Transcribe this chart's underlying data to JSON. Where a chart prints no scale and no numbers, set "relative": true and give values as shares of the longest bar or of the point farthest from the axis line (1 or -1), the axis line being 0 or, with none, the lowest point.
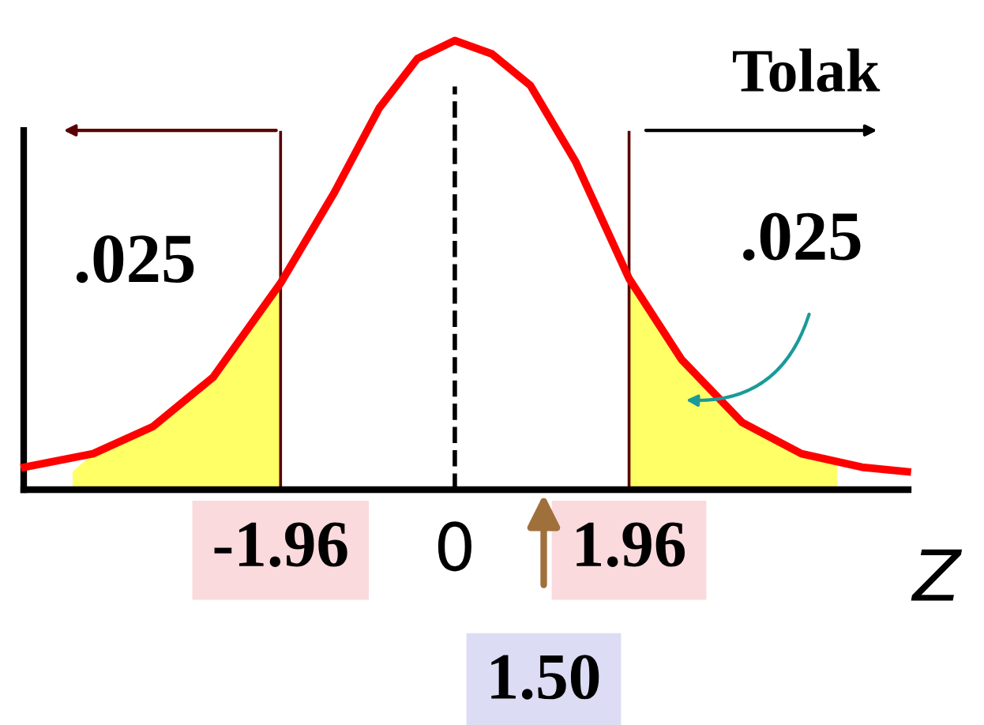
{
  "chart_data": {
    "type": "line",
    "relative": true,
    "xlabel": "Z",
    "tick_labels": "x",
    "grid": false,
    "marker": "none",
    "line_style": "solid",
    "x": [
      -4.84,
      -4.07,
      -3.4,
      -2.72,
      -1.96,
      -1.36,
      -0.85,
      -0.42,
      0,
      0.42,
      0.85,
      1.36,
      1.96,
      2.55,
      3.23,
      3.9,
      4.58,
      5.09
    ],
    "series": [
      {
        "color": "#ff0000",
        "values": [
          0.05,
          0.08,
          0.14,
          0.25,
          0.46,
          0.66,
          0.85,
          0.96,
          1,
          0.97,
          0.9,
          0.73,
          0.47,
          0.29,
          0.15,
          0.08,
          0.05,
          0.04
        ]
      },
      {
        "type": "area",
        "color": "#ffff66",
        "x": [
          -4.3,
          -4.07,
          -3.4,
          -2.72,
          -1.96
        ],
        "values": [
          0.04,
          0.08,
          0.14,
          0.25,
          0.46
        ]
      },
      {
        "type": "area",
        "color": "#ffff66",
        "x": [
          1.96,
          2.55,
          3.23,
          3.9,
          4.3
        ],
        "values": [
          0.47,
          0.29,
          0.15,
          0.08,
          0.06
        ]
      }
    ],
    "xlim": [
      -4.85,
      5.1
    ],
    "xticks": [
      -1.96,
      0,
      1.96
    ],
    "ref_lines": [
      {
        "axis": "x",
        "value": -1.96,
        "color": "#5a0000",
        "line_style": "solid"
      },
      {
        "axis": "x",
        "value": 1.96,
        "color": "#5a0000",
        "line_style": "solid"
      },
      {
        "axis": "x",
        "value": 0,
        "color": "#000000",
        "line_style": "dashed"
      }
    ],
    "annotations": [
      ".025",
      ".025",
      "Tolak",
      "1.50"
    ]
  }
}
